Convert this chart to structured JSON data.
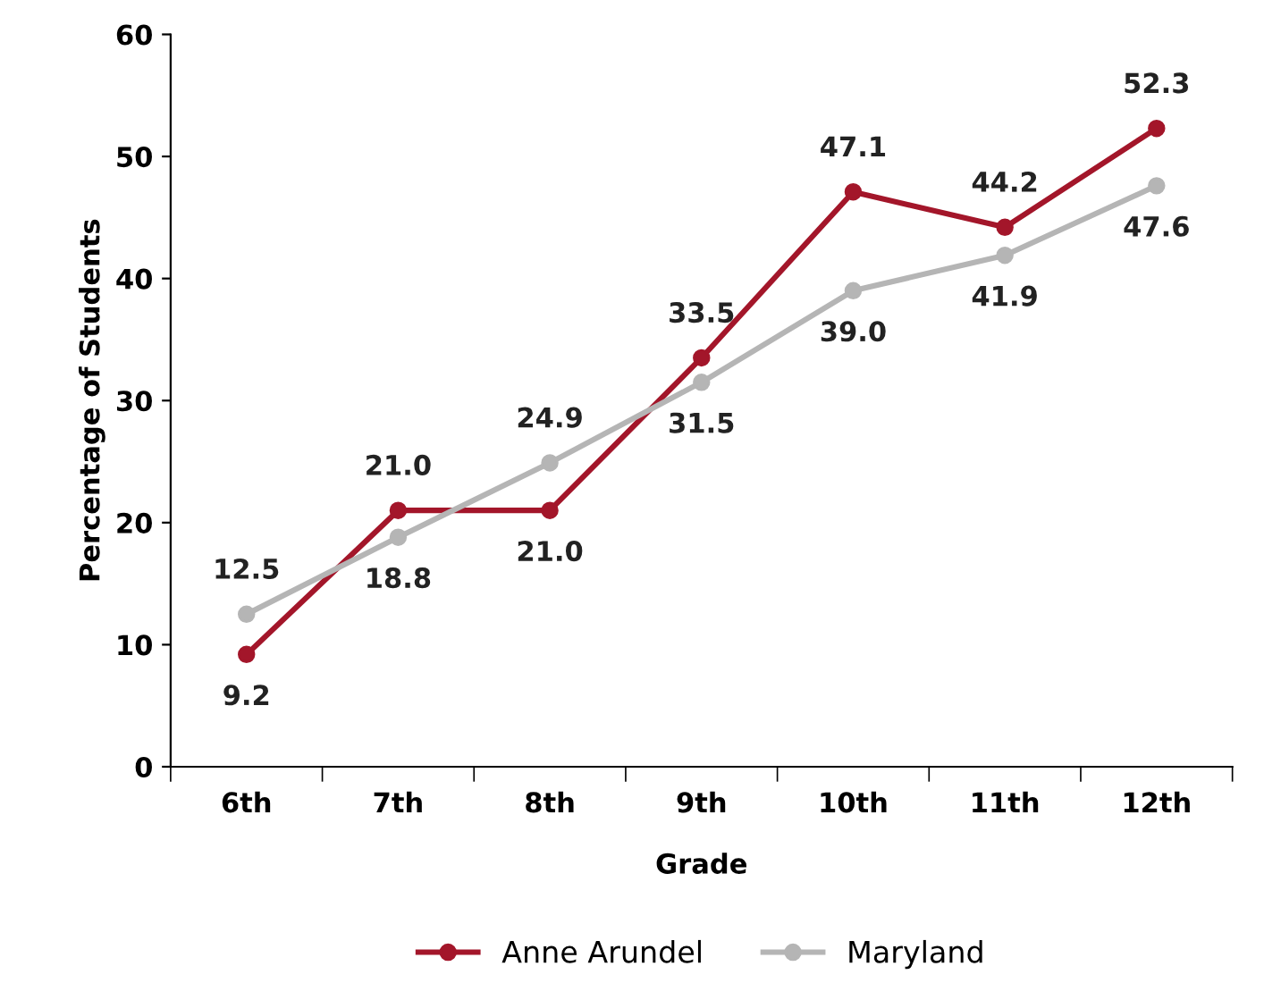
{
  "chart_data": {
    "type": "line",
    "xlabel": "Grade",
    "ylabel": "Percentage of Students",
    "categories": [
      "6th",
      "7th",
      "8th",
      "9th",
      "10th",
      "11th",
      "12th"
    ],
    "series": [
      {
        "name": "Anne Arundel",
        "color": "#a3162a",
        "values": [
          9.2,
          21.0,
          21.0,
          33.5,
          47.1,
          44.2,
          52.3
        ],
        "value_labels": [
          "9.2",
          "21.0",
          "21.0",
          "33.5",
          "47.1",
          "44.2",
          "52.3"
        ]
      },
      {
        "name": "Maryland",
        "color": "#b5b5b5",
        "values": [
          12.5,
          18.8,
          24.9,
          31.5,
          39.0,
          41.9,
          47.6
        ],
        "value_labels": [
          "12.5",
          "18.8",
          "24.9",
          "31.5",
          "39.0",
          "41.9",
          "47.6"
        ]
      }
    ],
    "ylim": [
      0,
      60
    ],
    "yticks": [
      0,
      10,
      20,
      30,
      40,
      50,
      60
    ],
    "grid": false,
    "legend": "bottom",
    "marker": "circle",
    "line_style": "solid"
  }
}
